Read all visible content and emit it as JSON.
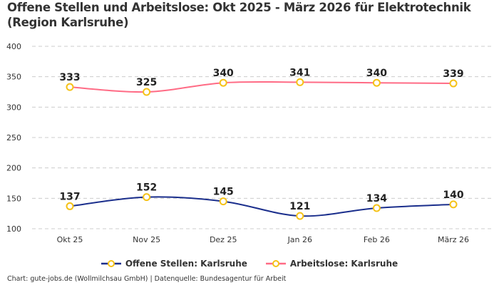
{
  "chart_data": {
    "type": "line",
    "title": "Offene Stellen und Arbeitslose: Okt 2025 - März 2026 für Elektrotechnik (Region Karlsruhe)",
    "categories": [
      "Okt 25",
      "Nov 25",
      "Dez 25",
      "Jan 26",
      "Feb 26",
      "März 26"
    ],
    "series": [
      {
        "name": "Offene Stellen: Karlsruhe",
        "values": [
          137,
          152,
          145,
          121,
          134,
          140
        ],
        "color": "#1a2e8c"
      },
      {
        "name": "Arbeitslose: Karlsruhe",
        "values": [
          333,
          325,
          340,
          341,
          340,
          339
        ],
        "color": "#ff6b85"
      }
    ],
    "marker_color": "#f5c218",
    "ylim": [
      100,
      400
    ],
    "yticks": [
      100,
      150,
      200,
      250,
      300,
      350,
      400
    ],
    "grid": true,
    "legend": "bottom",
    "xlabel": "",
    "ylabel": ""
  },
  "footer": "Chart: gute-jobs.de (Wollmilchsau GmbH) | Datenquelle: Bundesagentur für Arbeit"
}
